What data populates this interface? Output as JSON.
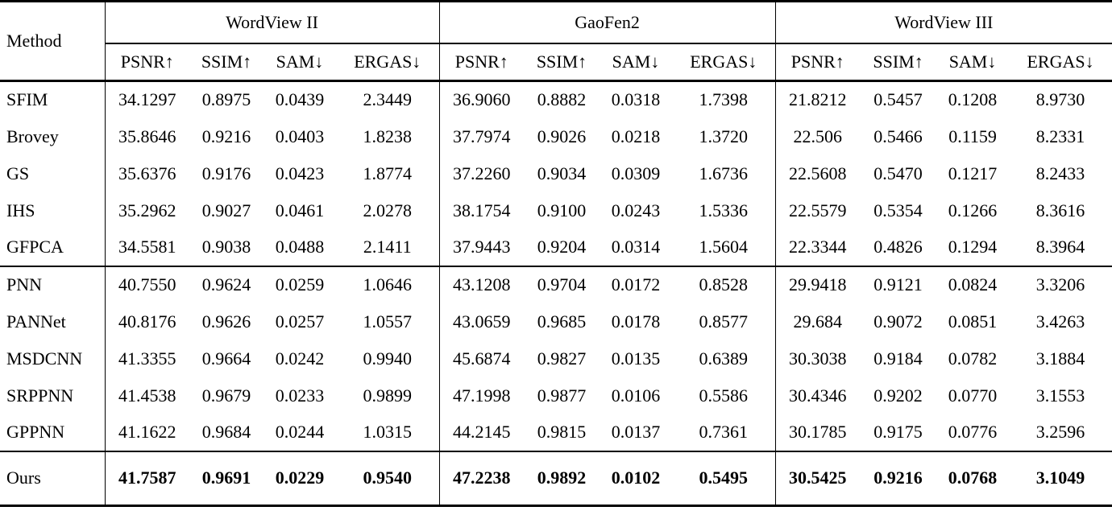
{
  "table": {
    "method_header": "Method",
    "groups": [
      {
        "label": "WordView II"
      },
      {
        "label": "GaoFen2"
      },
      {
        "label": "WordView III"
      }
    ],
    "metrics": [
      "PSNR↑",
      "SSIM↑",
      "SAM↓",
      "ERGAS↓"
    ],
    "text_color": "#000000",
    "background_color": "#ffffff",
    "sections": [
      {
        "name": "classic-methods",
        "rows": [
          {
            "method": "SFIM",
            "bold": false,
            "values": [
              "34.1297",
              "0.8975",
              "0.0439",
              "2.3449",
              "36.9060",
              "0.8882",
              "0.0318",
              "1.7398",
              "21.8212",
              "0.5457",
              "0.1208",
              "8.9730"
            ]
          },
          {
            "method": "Brovey",
            "bold": false,
            "values": [
              "35.8646",
              "0.9216",
              "0.0403",
              "1.8238",
              "37.7974",
              "0.9026",
              "0.0218",
              "1.3720",
              "22.506",
              "0.5466",
              "0.1159",
              "8.2331"
            ]
          },
          {
            "method": "GS",
            "bold": false,
            "values": [
              "35.6376",
              "0.9176",
              "0.0423",
              "1.8774",
              "37.2260",
              "0.9034",
              "0.0309",
              "1.6736",
              "22.5608",
              "0.5470",
              "0.1217",
              "8.2433"
            ]
          },
          {
            "method": "IHS",
            "bold": false,
            "values": [
              "35.2962",
              "0.9027",
              "0.0461",
              "2.0278",
              "38.1754",
              "0.9100",
              "0.0243",
              "1.5336",
              "22.5579",
              "0.5354",
              "0.1266",
              "8.3616"
            ]
          },
          {
            "method": "GFPCA",
            "bold": false,
            "values": [
              "34.5581",
              "0.9038",
              "0.0488",
              "2.1411",
              "37.9443",
              "0.9204",
              "0.0314",
              "1.5604",
              "22.3344",
              "0.4826",
              "0.1294",
              "8.3964"
            ]
          }
        ]
      },
      {
        "name": "deep-learning-methods",
        "rows": [
          {
            "method": "PNN",
            "bold": false,
            "values": [
              "40.7550",
              "0.9624",
              "0.0259",
              "1.0646",
              "43.1208",
              "0.9704",
              "0.0172",
              "0.8528",
              "29.9418",
              "0.9121",
              "0.0824",
              "3.3206"
            ]
          },
          {
            "method": "PANNet",
            "bold": false,
            "values": [
              "40.8176",
              "0.9626",
              "0.0257",
              "1.0557",
              "43.0659",
              "0.9685",
              "0.0178",
              "0.8577",
              "29.684",
              "0.9072",
              "0.0851",
              "3.4263"
            ]
          },
          {
            "method": "MSDCNN",
            "bold": false,
            "values": [
              "41.3355",
              "0.9664",
              "0.0242",
              "0.9940",
              "45.6874",
              "0.9827",
              "0.0135",
              "0.6389",
              "30.3038",
              "0.9184",
              "0.0782",
              "3.1884"
            ]
          },
          {
            "method": "SRPPNN",
            "bold": false,
            "values": [
              "41.4538",
              "0.9679",
              "0.0233",
              "0.9899",
              "47.1998",
              "0.9877",
              "0.0106",
              "0.5586",
              "30.4346",
              "0.9202",
              "0.0770",
              "3.1553"
            ]
          },
          {
            "method": "GPPNN",
            "bold": false,
            "values": [
              "41.1622",
              "0.9684",
              "0.0244",
              "1.0315",
              "44.2145",
              "0.9815",
              "0.0137",
              "0.7361",
              "30.1785",
              "0.9175",
              "0.0776",
              "3.2596"
            ]
          }
        ]
      },
      {
        "name": "ours",
        "rows": [
          {
            "method": "Ours",
            "bold": true,
            "values": [
              "41.7587",
              "0.9691",
              "0.0229",
              "0.9540",
              "47.2238",
              "0.9892",
              "0.0102",
              "0.5495",
              "30.5425",
              "0.9216",
              "0.0768",
              "3.1049"
            ]
          }
        ]
      }
    ]
  }
}
